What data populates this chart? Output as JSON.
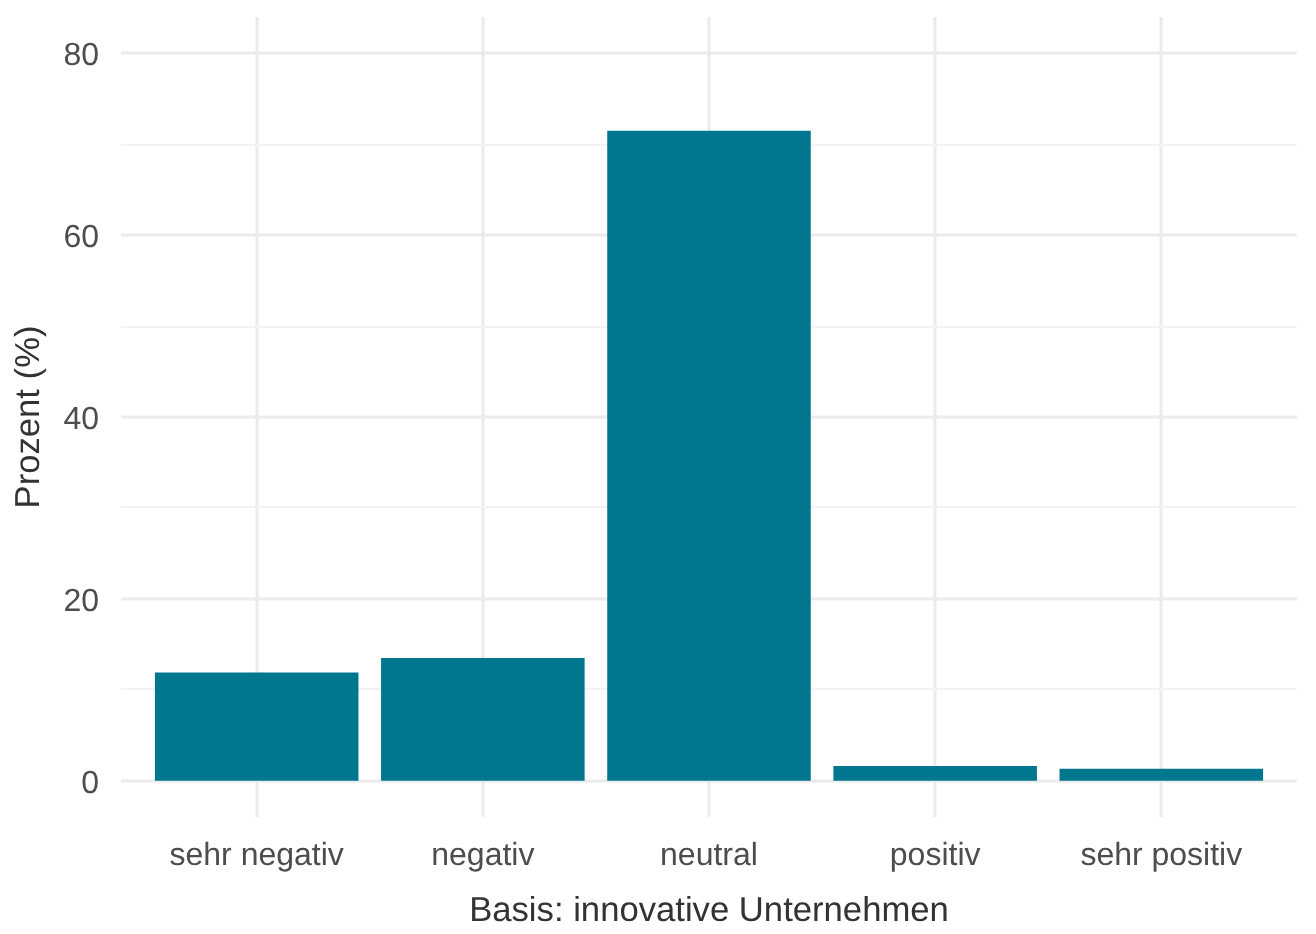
{
  "chart_data": {
    "type": "bar",
    "xlabel": "Basis: innovative Unternehmen",
    "ylabel": "Prozent (%)",
    "categories": [
      "sehr negativ",
      "negativ",
      "neutral",
      "positiv",
      "sehr positiv"
    ],
    "values": [
      11.9,
      13.5,
      71.5,
      1.6,
      1.3
    ],
    "color": "#00778f",
    "ylim": [
      -4,
      84
    ],
    "yticks": [
      0,
      20,
      40,
      60,
      80
    ],
    "grid": true
  }
}
